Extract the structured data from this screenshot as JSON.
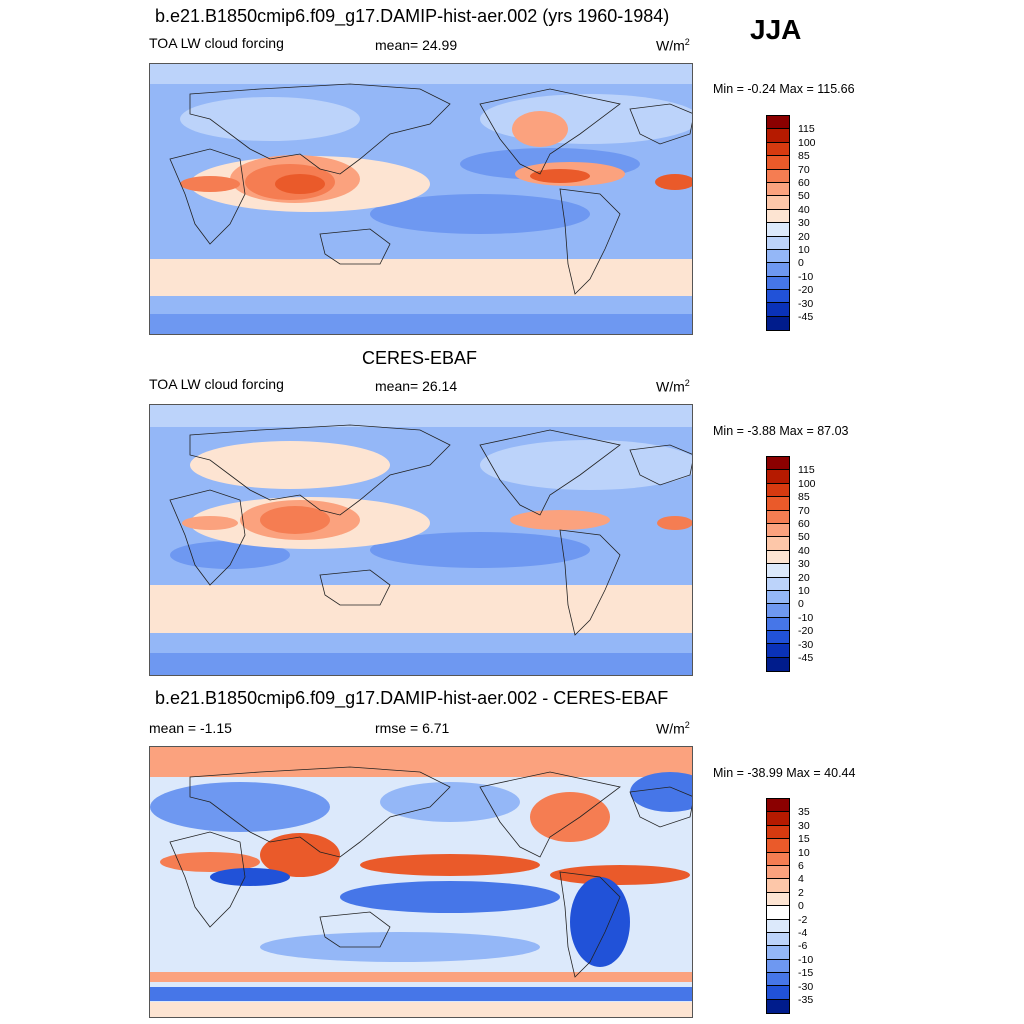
{
  "season": "JJA",
  "panels": [
    {
      "title": "b.e21.B1850cmip6.f09_g17.DAMIP-hist-aer.002 (yrs 1960-1984)",
      "left_label": "TOA LW cloud forcing",
      "center_label": "mean=  24.99",
      "units": "W/m",
      "units_sup": "2",
      "minmax": "Min =  -0.24 Max = 115.66",
      "kind": "field"
    },
    {
      "title": "CERES-EBAF",
      "left_label": "TOA LW cloud forcing",
      "center_label": "mean=  26.14",
      "units": "W/m",
      "units_sup": "2",
      "minmax": "Min =  -3.88 Max =  87.03",
      "kind": "field"
    },
    {
      "title": "b.e21.B1850cmip6.f09_g17.DAMIP-hist-aer.002 - CERES-EBAF",
      "left_label": "mean =  -1.15",
      "center_label": "rmse =   6.71",
      "units": "W/m",
      "units_sup": "2",
      "minmax": "Min = -38.99 Max =  40.44",
      "kind": "diff"
    }
  ],
  "colorbars": {
    "field": {
      "labels": [
        "115",
        "100",
        "85",
        "70",
        "60",
        "50",
        "40",
        "30",
        "20",
        "10",
        "0",
        "-10",
        "-20",
        "-30",
        "-45"
      ],
      "colors": [
        "#8b0000",
        "#b51a00",
        "#d63a10",
        "#ea5a2a",
        "#f57d52",
        "#fba27e",
        "#fdc7a9",
        "#fde4d2",
        "#dce9fb",
        "#bcd3fa",
        "#94b7f7",
        "#6e98f1",
        "#4676e8",
        "#2152d8",
        "#0a32b8",
        "#001c8c"
      ]
    },
    "diff": {
      "labels": [
        "35",
        "30",
        "15",
        "10",
        "6",
        "4",
        "2",
        "0",
        "-2",
        "-4",
        "-6",
        "-10",
        "-15",
        "-30",
        "-35"
      ],
      "colors": [
        "#8b0000",
        "#b51a00",
        "#d63a10",
        "#ea5a2a",
        "#f57d52",
        "#fba27e",
        "#fdc7a9",
        "#fde4d2",
        "#ffffff",
        "#dce9fb",
        "#bcd3fa",
        "#94b7f7",
        "#6e98f1",
        "#4676e8",
        "#2152d8",
        "#001c8c"
      ]
    }
  }
}
